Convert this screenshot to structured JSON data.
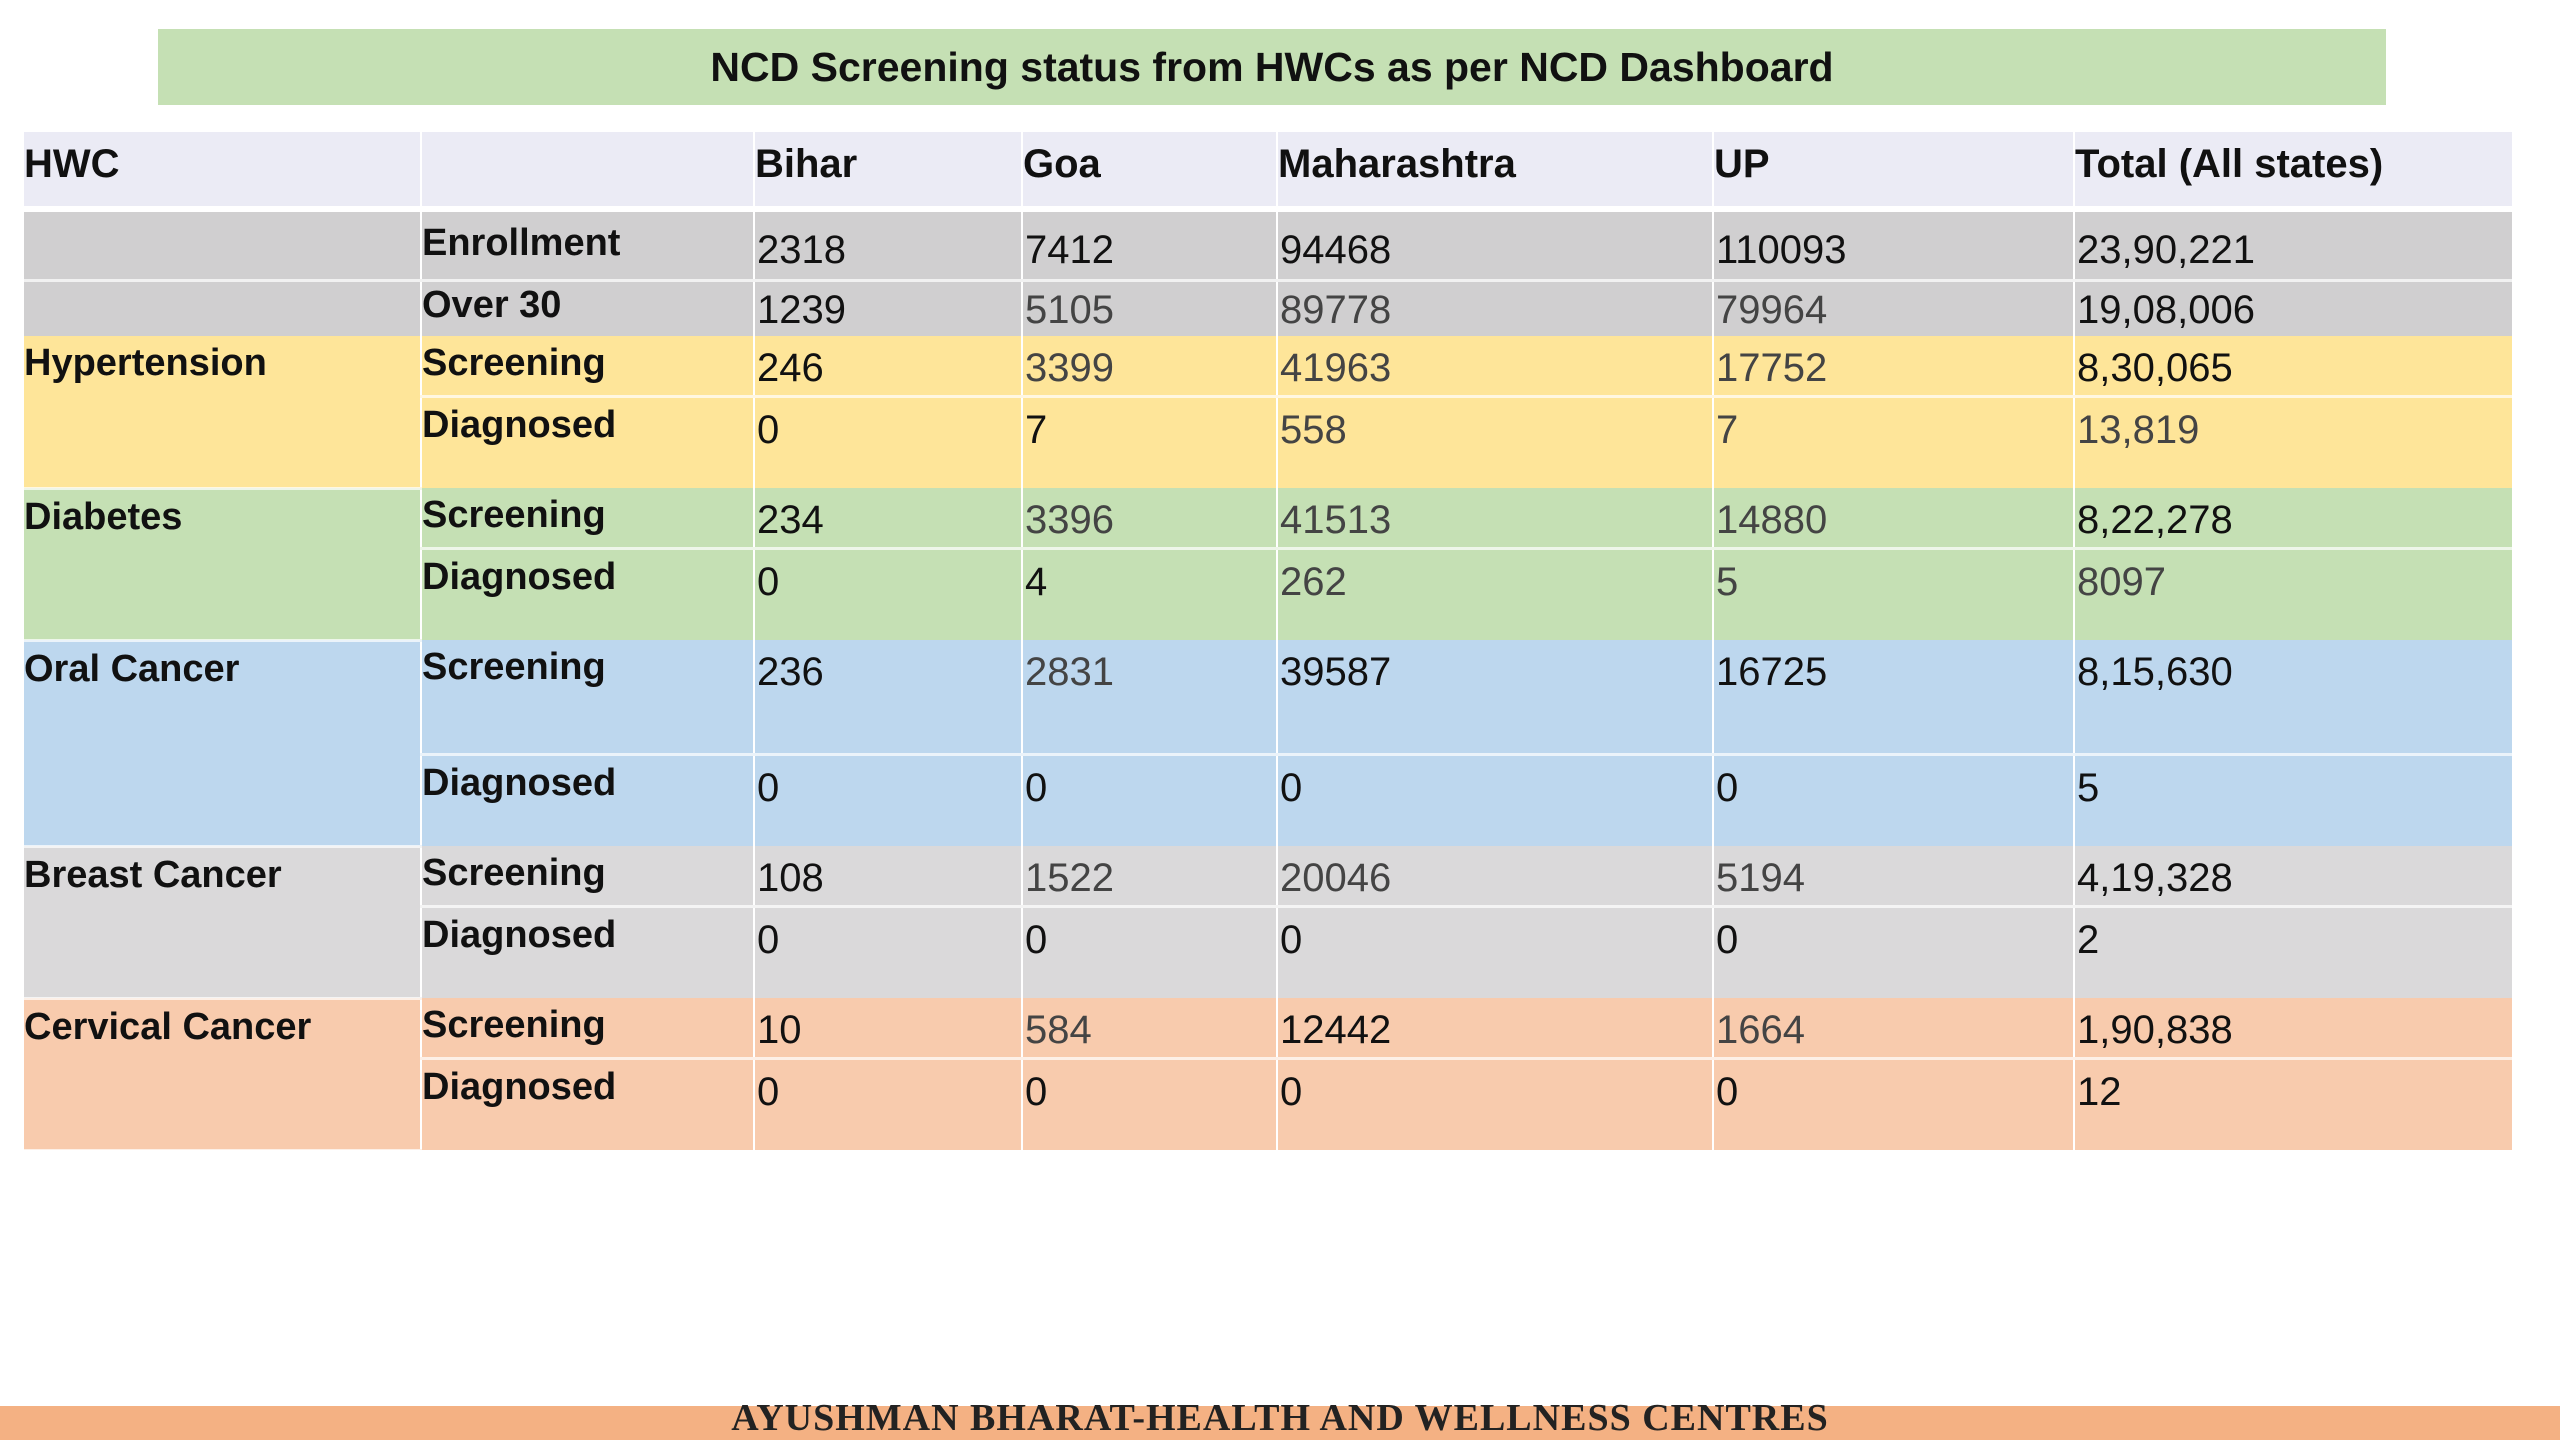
{
  "title": "NCD Screening status from HWCs as per NCD Dashboard",
  "headers": {
    "hwc": "HWC",
    "bihar": "Bihar",
    "goa": "Goa",
    "maharashtra": "Maharashtra",
    "up": "UP",
    "total": "Total (All states)"
  },
  "rows": {
    "enrollment": {
      "label": "Enrollment",
      "bihar": "2318",
      "goa": "7412",
      "maharashtra": "94468",
      "up": "110093",
      "total": "23,90,221"
    },
    "over30": {
      "label": "Over 30",
      "bihar": "1239",
      "goa": "5105",
      "maharashtra": "89778",
      "up": "79964",
      "total": "19,08,006"
    },
    "hypertension": {
      "group": "Hypertension",
      "screening": {
        "label": "Screening",
        "bihar": "246",
        "goa": "3399",
        "maharashtra": "41963",
        "up": "17752",
        "total": "8,30,065"
      },
      "diagnosed": {
        "label": "Diagnosed",
        "bihar": "0",
        "goa": "7",
        "maharashtra": "558",
        "up": "7",
        "total": "13,819"
      }
    },
    "diabetes": {
      "group": "Diabetes",
      "screening": {
        "label": "Screening",
        "bihar": "234",
        "goa": "3396",
        "maharashtra": "41513",
        "up": "14880",
        "total": "8,22,278"
      },
      "diagnosed": {
        "label": "Diagnosed",
        "bihar": "0",
        "goa": "4",
        "maharashtra": "262",
        "up": "5",
        "total": "8097"
      }
    },
    "oral_cancer": {
      "group": "Oral Cancer",
      "screening": {
        "label": "Screening",
        "bihar": "236",
        "goa": "2831",
        "maharashtra": "39587",
        "up": "16725",
        "total": "8,15,630"
      },
      "diagnosed": {
        "label": "Diagnosed",
        "bihar": "0",
        "goa": "0",
        "maharashtra": "0",
        "up": "0",
        "total": "5"
      }
    },
    "breast_cancer": {
      "group": "Breast Cancer",
      "screening": {
        "label": "Screening",
        "bihar": "108",
        "goa": "1522",
        "maharashtra": "20046",
        "up": "5194",
        "total": "4,19,328"
      },
      "diagnosed": {
        "label": "Diagnosed",
        "bihar": "0",
        "goa": "0",
        "maharashtra": "0",
        "up": "0",
        "total": "2"
      }
    },
    "cervical_cancer": {
      "group": "Cervical Cancer",
      "screening": {
        "label": "Screening",
        "bihar": "10",
        "goa": "584",
        "maharashtra": "12442",
        "up": "1664",
        "total": "1,90,838"
      },
      "diagnosed": {
        "label": "Diagnosed",
        "bihar": "0",
        "goa": "0",
        "maharashtra": "0",
        "up": "0",
        "total": "12"
      }
    }
  },
  "footer": "AYUSHMAN BHARAT-HEALTH AND WELLNESS CENTRES",
  "colors": {
    "title_bg": "#c5e0b4",
    "header_bg": "#ebebf5",
    "enrollment_bg": "#d0cfd0",
    "hypertension_bg": "#fee599",
    "diabetes_bg": "#c5e0b4",
    "oral_cancer_bg": "#bdd7ee",
    "breast_cancer_bg": "#dad9da",
    "cervical_cancer_bg": "#f8cbad",
    "footer_bg": "#f4b183"
  }
}
